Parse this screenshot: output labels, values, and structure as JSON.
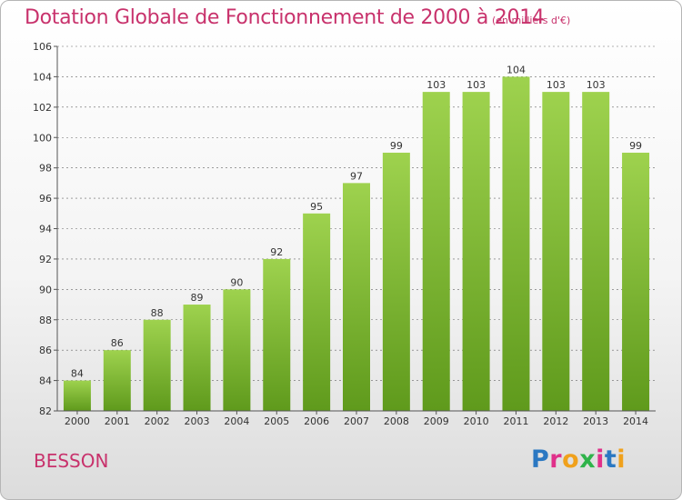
{
  "header": {
    "title": "Dotation Globale de Fonctionnement de 2000 à 2014",
    "unit_note": "(en milliers d'€)"
  },
  "footer": {
    "commune": "BESSON",
    "logo_letters": [
      "P",
      "r",
      "o",
      "x",
      "i",
      "t",
      "i"
    ]
  },
  "colors": {
    "title": "#c8326c",
    "bar_top": "#9ed24e",
    "bar_bottom": "#5f9a1c",
    "axis": "#555555",
    "grid": "#666666",
    "logo": [
      "#2b78c2",
      "#e0308a",
      "#f0a11c",
      "#2fb34a",
      "#e0308a",
      "#2b78c2",
      "#f0a11c"
    ]
  },
  "chart_data": {
    "type": "bar",
    "title": "Dotation Globale de Fonctionnement de 2000 à 2014",
    "subtitle": "(en milliers d'€)",
    "categories": [
      "2000",
      "2001",
      "2002",
      "2003",
      "2004",
      "2005",
      "2006",
      "2007",
      "2008",
      "2009",
      "2010",
      "2011",
      "2012",
      "2013",
      "2014"
    ],
    "values": [
      84,
      86,
      88,
      89,
      90,
      92,
      95,
      97,
      99,
      103,
      103,
      104,
      103,
      103,
      99
    ],
    "ylim": [
      82,
      106
    ],
    "yticks": [
      82,
      84,
      86,
      88,
      90,
      92,
      94,
      96,
      98,
      100,
      102,
      104,
      106
    ],
    "xlabel": "",
    "ylabel": "",
    "grid": "dashed horizontal",
    "legend": "none"
  }
}
